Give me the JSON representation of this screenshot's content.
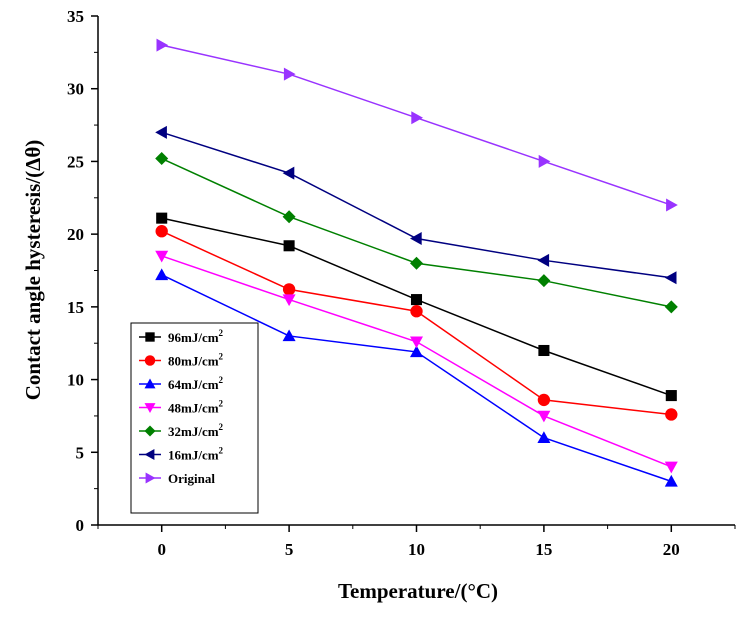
{
  "chart_data": {
    "type": "line",
    "xlabel": "Temperature/(°C)",
    "ylabel": "Contact angle hysteresis/(Δθ)",
    "x": [
      0,
      5,
      10,
      15,
      20
    ],
    "xlim": [
      -2.5,
      22.5
    ],
    "ylim": [
      0,
      35
    ],
    "xticks": [
      "0",
      "5",
      "10",
      "15",
      "20"
    ],
    "yticks": [
      "0",
      "5",
      "10",
      "15",
      "20",
      "25",
      "30",
      "35"
    ],
    "grid": false,
    "legend_position": "bottom-left",
    "series": [
      {
        "name": "96mJ/cm",
        "sup": "2",
        "marker": "square",
        "color": "#000000",
        "values": [
          21.1,
          19.2,
          15.5,
          12.0,
          8.9
        ]
      },
      {
        "name": "80mJ/cm",
        "sup": "2",
        "marker": "circle",
        "color": "#ff0000",
        "values": [
          20.2,
          16.2,
          14.7,
          8.6,
          7.6
        ]
      },
      {
        "name": "64mJ/cm",
        "sup": "2",
        "marker": "triangle-up",
        "color": "#0000ff",
        "values": [
          17.2,
          13.0,
          11.9,
          6.0,
          3.0
        ]
      },
      {
        "name": "48mJ/cm",
        "sup": "2",
        "marker": "triangle-down",
        "color": "#ff00ff",
        "values": [
          18.5,
          15.5,
          12.6,
          7.5,
          4.0
        ]
      },
      {
        "name": "32mJ/cm",
        "sup": "2",
        "marker": "diamond",
        "color": "#008000",
        "values": [
          25.2,
          21.2,
          18.0,
          16.8,
          15.0
        ]
      },
      {
        "name": "16mJ/cm",
        "sup": "2",
        "marker": "triangle-left",
        "color": "#000080",
        "values": [
          27.0,
          24.2,
          19.7,
          18.2,
          17.0
        ]
      },
      {
        "name": "Original",
        "sup": "",
        "marker": "triangle-right",
        "color": "#9933ff",
        "values": [
          33.0,
          31.0,
          28.0,
          25.0,
          22.0
        ]
      }
    ]
  }
}
